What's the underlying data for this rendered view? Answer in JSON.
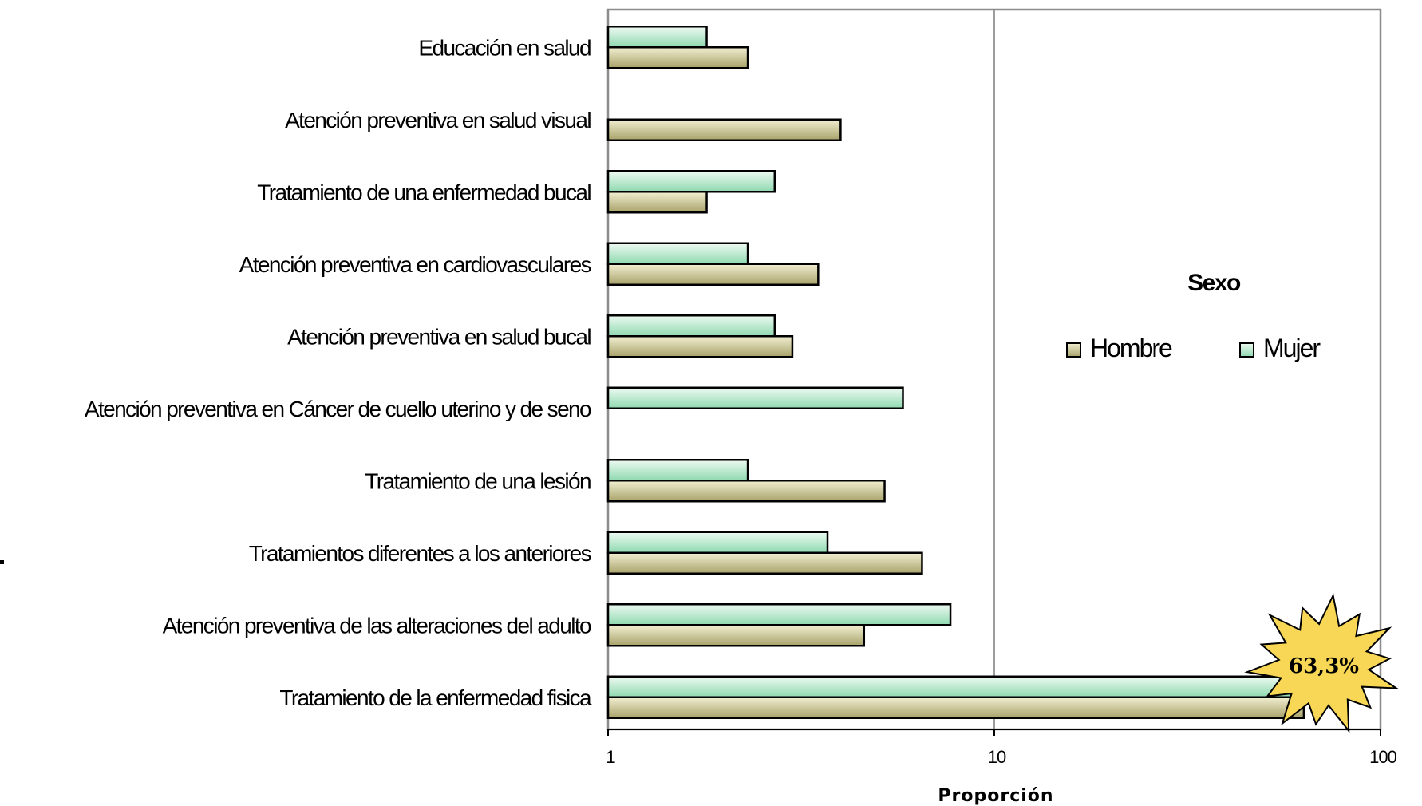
{
  "chart_data": {
    "type": "bar",
    "orientation": "horizontal",
    "xscale": "log",
    "xlim": [
      1,
      100
    ],
    "xticks": [
      "1",
      "10",
      "100"
    ],
    "xlabel": "Proporción",
    "ylabel": "",
    "grid": "vertical major gridlines",
    "categories": [
      "Educación en salud",
      "Atención preventiva en salud visual",
      "Tratamiento de una enfermedad bucal",
      "Atención preventiva en cardiovasculares",
      "Atención preventiva en salud bucal",
      "Atención preventiva en Cáncer de cuello uterino y de seno",
      "Tratamiento de una lesión",
      "Tratamientos diferentes a los anteriores",
      "Atención preventiva de las alteraciones del adulto",
      "Tratamiento de la enfermedad fisica"
    ],
    "series": [
      {
        "name": "Hombre",
        "color": "#a8a26a",
        "values": [
          2.3,
          4.0,
          1.8,
          3.5,
          3.0,
          null,
          5.2,
          6.5,
          4.6,
          63.3
        ]
      },
      {
        "name": "Mujer",
        "color": "#8fd9b0",
        "values": [
          1.8,
          null,
          2.7,
          2.3,
          2.7,
          5.8,
          2.3,
          3.7,
          7.7,
          63.3
        ]
      }
    ],
    "legend": {
      "title": "Sexo",
      "placement": "right, inside plot area"
    },
    "annotation": {
      "text": "63,3%",
      "shape": "star-burst",
      "fill": "#f7d755"
    }
  }
}
